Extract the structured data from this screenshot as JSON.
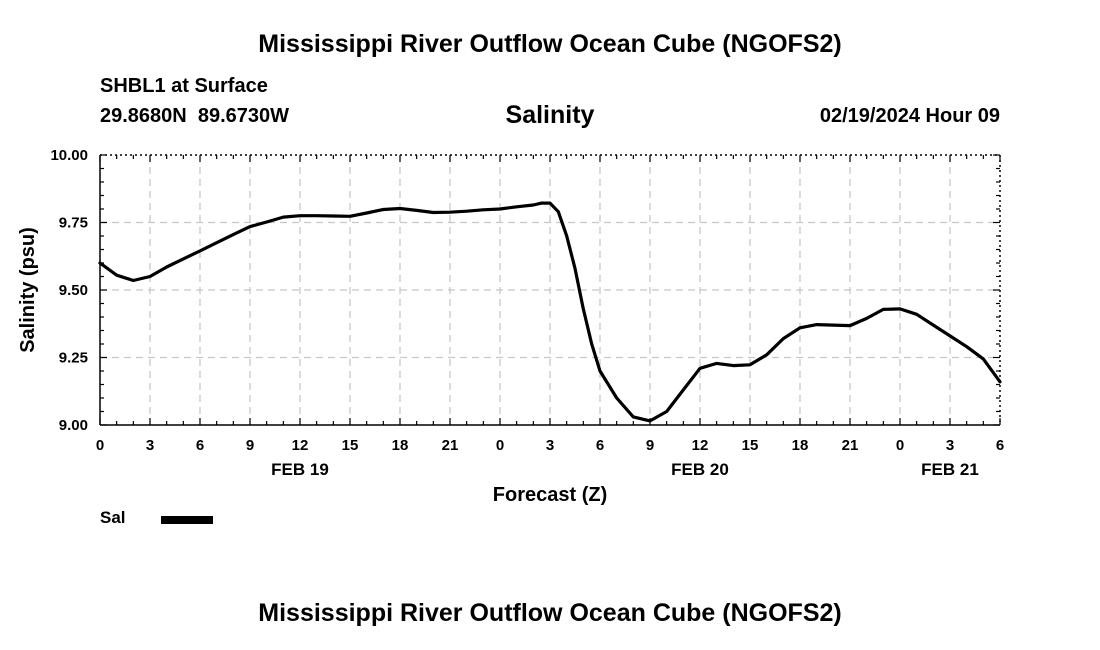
{
  "page": {
    "title": "Mississippi River Outflow Ocean Cube (NGOFS2)",
    "title_bottom": "Mississippi River Outflow Ocean Cube (NGOFS2)"
  },
  "header": {
    "station": "SHBL1 at Surface",
    "coords": "29.8680N  89.6730W",
    "variable": "Salinity",
    "datetime": "02/19/2024 Hour 09"
  },
  "legend": {
    "label": "Sal",
    "color": "#000000"
  },
  "chart_data": {
    "type": "line",
    "title": "Salinity",
    "xlabel": "Forecast (Z)",
    "ylabel": "Salinity (psu)",
    "xlim": [
      0,
      54
    ],
    "ylim": [
      9.0,
      10.0
    ],
    "grid": true,
    "x_ticks": [
      0,
      3,
      6,
      9,
      12,
      15,
      18,
      21,
      24,
      27,
      30,
      33,
      36,
      39,
      42,
      45,
      48,
      51,
      54
    ],
    "x_tick_labels": [
      "0",
      "3",
      "6",
      "9",
      "12",
      "15",
      "18",
      "21",
      "0",
      "3",
      "6",
      "9",
      "12",
      "15",
      "18",
      "21",
      "0",
      "3",
      "6"
    ],
    "date_labels": [
      {
        "x": 12,
        "label": "FEB 19"
      },
      {
        "x": 36,
        "label": "FEB 20"
      },
      {
        "x": 51,
        "label": "FEB 21"
      }
    ],
    "y_ticks": [
      9.0,
      9.25,
      9.5,
      9.75,
      10.0
    ],
    "y_tick_labels": [
      "9.00",
      "9.25",
      "9.50",
      "9.75",
      "10.00"
    ],
    "series": [
      {
        "name": "Sal",
        "color": "#000000",
        "x": [
          0,
          1,
          2,
          3,
          4,
          5,
          6,
          7,
          8,
          9,
          10,
          11,
          12,
          13,
          14,
          15,
          16,
          17,
          18,
          19,
          20,
          21,
          22,
          23,
          24,
          25,
          26,
          26.5,
          27,
          27.5,
          28,
          28.5,
          29,
          29.5,
          30,
          31,
          32,
          33,
          34,
          35,
          36,
          37,
          38,
          39,
          40,
          41,
          42,
          43,
          44,
          45,
          46,
          47,
          48,
          49,
          50,
          51,
          52,
          53,
          54
        ],
        "y": [
          9.6,
          9.555,
          9.535,
          9.55,
          9.585,
          9.615,
          9.645,
          9.675,
          9.705,
          9.735,
          9.752,
          9.77,
          9.775,
          9.775,
          9.774,
          9.773,
          9.785,
          9.798,
          9.802,
          9.795,
          9.787,
          9.788,
          9.792,
          9.797,
          9.8,
          9.808,
          9.815,
          9.822,
          9.822,
          9.79,
          9.7,
          9.58,
          9.43,
          9.3,
          9.2,
          9.1,
          9.03,
          9.015,
          9.05,
          9.13,
          9.21,
          9.228,
          9.22,
          9.223,
          9.26,
          9.32,
          9.36,
          9.372,
          9.37,
          9.368,
          9.395,
          9.428,
          9.43,
          9.41,
          9.37,
          9.33,
          9.29,
          9.245,
          9.16
        ]
      }
    ]
  }
}
